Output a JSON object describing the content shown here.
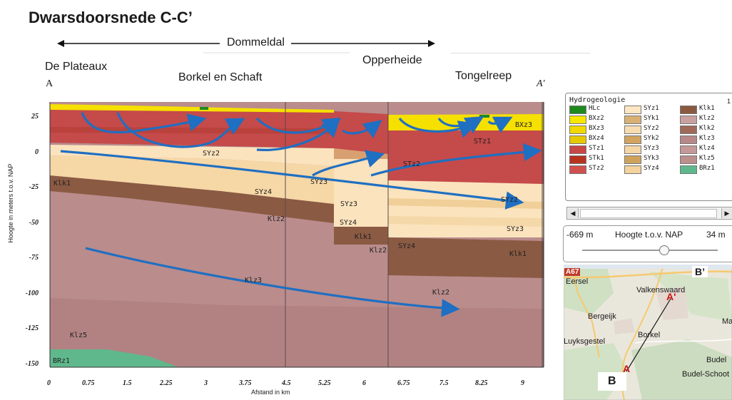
{
  "title": "Dwarsdoorsnede C-C’",
  "labels": {
    "dommeldal": "Dommeldal",
    "opperheide": "Opperheide",
    "de_plateaux": "De Plateaux",
    "borkel_en_schaft": "Borkel en Schaft",
    "tongelreep": "Tongelreep",
    "point_a": "A",
    "point_a_prime": "A'"
  },
  "section": {
    "y_axis_label": "Hoogte in meters t.o.v. NAP",
    "x_axis_label": "Afstand in km",
    "y_ticks": [
      "25",
      "0",
      "-25",
      "-50",
      "-75",
      "-100",
      "-125",
      "-150"
    ],
    "x_ticks": [
      "0",
      "0.75",
      "1.5",
      "2.25",
      "3",
      "3.75",
      "4.5",
      "5.25",
      "6",
      "6.75",
      "7.5",
      "8.25",
      "9"
    ],
    "unit_labels": {
      "syz2": "SYz2",
      "syz4": "SYz4",
      "syz3a": "SYz3",
      "syz3b": "SYz3",
      "syz4b": "SYz4",
      "syz4c": "SYz4",
      "syz3c": "SYz3",
      "klk1a": "Klk1",
      "klk1b": "Klk1",
      "klk1c": "Klk1",
      "klz2a": "Klz2",
      "klz2b": "Klz2",
      "klz2c": "Klz2",
      "klz3": "Klz3",
      "klz5": "Klz5",
      "brz1": "BRz1",
      "stz1": "STz1",
      "stz2": "STz2",
      "bxz3": "BXz3",
      "sz2": "SYz2"
    }
  },
  "legend": {
    "title": "Hydrogeologie",
    "items": [
      {
        "code": "HLc",
        "color": "#1e8a1e"
      },
      {
        "code": "BXz2",
        "color": "#f7e600"
      },
      {
        "code": "BXz3",
        "color": "#f0d800"
      },
      {
        "code": "BXz4",
        "color": "#e6c800"
      },
      {
        "code": "STz1",
        "color": "#c84646"
      },
      {
        "code": "STk1",
        "color": "#b83220"
      },
      {
        "code": "STz2",
        "color": "#d05050"
      },
      {
        "code": "SYz1",
        "color": "#fde6c2"
      },
      {
        "code": "SYk1",
        "color": "#d8b074"
      },
      {
        "code": "SYz2",
        "color": "#f7dcb0"
      },
      {
        "code": "SYk2",
        "color": "#d2a460"
      },
      {
        "code": "SYz3",
        "color": "#f5d6a4"
      },
      {
        "code": "SYk3",
        "color": "#cfa25c"
      },
      {
        "code": "SYz4",
        "color": "#f3d29c"
      },
      {
        "code": "Klk1",
        "color": "#8a5a40"
      },
      {
        "code": "Klz2",
        "color": "#c9a0a0"
      },
      {
        "code": "Klk2",
        "color": "#a06a58"
      },
      {
        "code": "Klz3",
        "color": "#b88888"
      },
      {
        "code": "Klz4",
        "color": "#c49898"
      },
      {
        "code": "Klz5",
        "color": "#bc8e8e"
      },
      {
        "code": "BRz1",
        "color": "#5fb88c"
      }
    ],
    "corner_mark": "1"
  },
  "slider": {
    "min_label": "-669 m",
    "caption": "Hoogte t.o.v. NAP",
    "max_label": "34 m",
    "value_fraction": 0.6
  },
  "map": {
    "road_label": "A67",
    "places": [
      "Eersel",
      "Valkenswaard",
      "Bergeijk",
      "Borkel",
      "Luyksgestel",
      "Budel",
      "Budel-Schoot",
      "Ma"
    ],
    "point_a": "A",
    "point_a_prime": "A'",
    "corner_b": "B",
    "corner_b_prime": "B’"
  },
  "colors": {
    "arrow": "#1f6fc2",
    "bxz": "#f5e000",
    "stz": "#c54a4a",
    "syz_light": "#fbe3bd",
    "klk": "#8b5a43",
    "klz": "#ba8c8c",
    "brz": "#5fb88c"
  }
}
